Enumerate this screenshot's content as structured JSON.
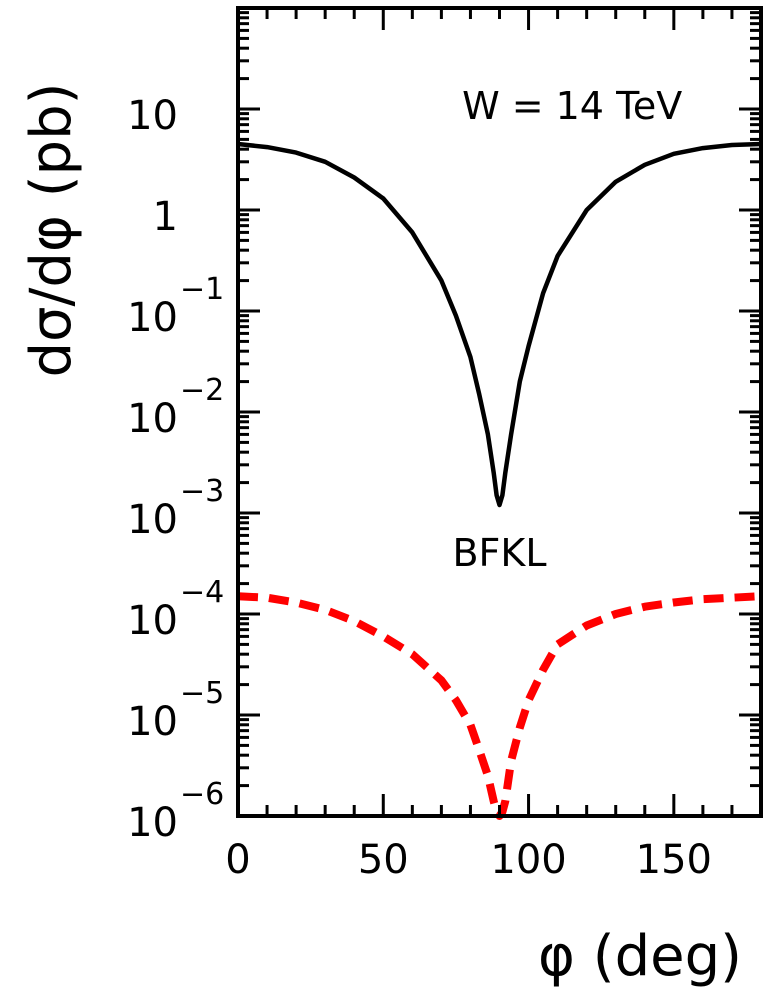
{
  "chart_data": {
    "type": "line",
    "xlabel": "φ (deg)",
    "ylabel": "dσ/dφ (pb)",
    "xlim": [
      0,
      180
    ],
    "ylim": [
      1e-06,
      100
    ],
    "yscale": "log",
    "grid": false,
    "x_ticks": [
      {
        "value": 0,
        "label": "0"
      },
      {
        "value": 50,
        "label": "50"
      },
      {
        "value": 100,
        "label": "100"
      },
      {
        "value": 150,
        "label": "150"
      }
    ],
    "y_ticks": [
      {
        "value": 10,
        "base": "10",
        "exp": ""
      },
      {
        "value": 1,
        "base": "1",
        "exp": ""
      },
      {
        "value": 0.1,
        "base": "10",
        "exp": "−1"
      },
      {
        "value": 0.01,
        "base": "10",
        "exp": "−2"
      },
      {
        "value": 0.001,
        "base": "10",
        "exp": "−3"
      },
      {
        "value": 0.0001,
        "base": "10",
        "exp": "−4"
      },
      {
        "value": 1e-05,
        "base": "10",
        "exp": "−5"
      },
      {
        "value": 1e-06,
        "base": "10",
        "exp": "−6"
      }
    ],
    "annotations": [
      {
        "text": "W = 14 TeV",
        "x": 115,
        "y": 8
      },
      {
        "text": "BFKL",
        "x": 90,
        "y": 0.0003
      }
    ],
    "series": [
      {
        "color": "#000000",
        "style": "solid",
        "x": [
          0,
          10,
          20,
          30,
          40,
          50,
          60,
          70,
          75,
          80,
          83,
          86,
          88,
          89,
          90,
          91,
          92,
          94,
          97,
          100,
          105,
          110,
          120,
          130,
          140,
          150,
          160,
          170,
          180
        ],
        "y": [
          4.5,
          4.2,
          3.7,
          3.0,
          2.1,
          1.3,
          0.6,
          0.2,
          0.09,
          0.035,
          0.015,
          0.006,
          0.0025,
          0.0015,
          0.0012,
          0.0015,
          0.0025,
          0.006,
          0.02,
          0.045,
          0.15,
          0.35,
          1.0,
          1.9,
          2.8,
          3.6,
          4.1,
          4.4,
          4.5
        ]
      },
      {
        "color": "#ff0000",
        "style": "dashed",
        "x": [
          0,
          10,
          20,
          30,
          40,
          50,
          60,
          70,
          75,
          80,
          83,
          86,
          88,
          89,
          90,
          91,
          92,
          94,
          97,
          100,
          105,
          110,
          120,
          130,
          140,
          150,
          160,
          170,
          180
        ],
        "y": [
          0.00015,
          0.000145,
          0.00013,
          0.00011,
          8.5e-05,
          6e-05,
          4e-05,
          2.2e-05,
          1.4e-05,
          8e-06,
          4.5e-06,
          2.5e-06,
          1.4e-06,
          1.1e-06,
          1e-06,
          1.1e-06,
          1.4e-06,
          3.5e-06,
          7.5e-06,
          1.4e-05,
          2.8e-05,
          5e-05,
          7.7e-05,
          0.0001,
          0.000118,
          0.00013,
          0.00014,
          0.000145,
          0.00015
        ]
      }
    ]
  }
}
